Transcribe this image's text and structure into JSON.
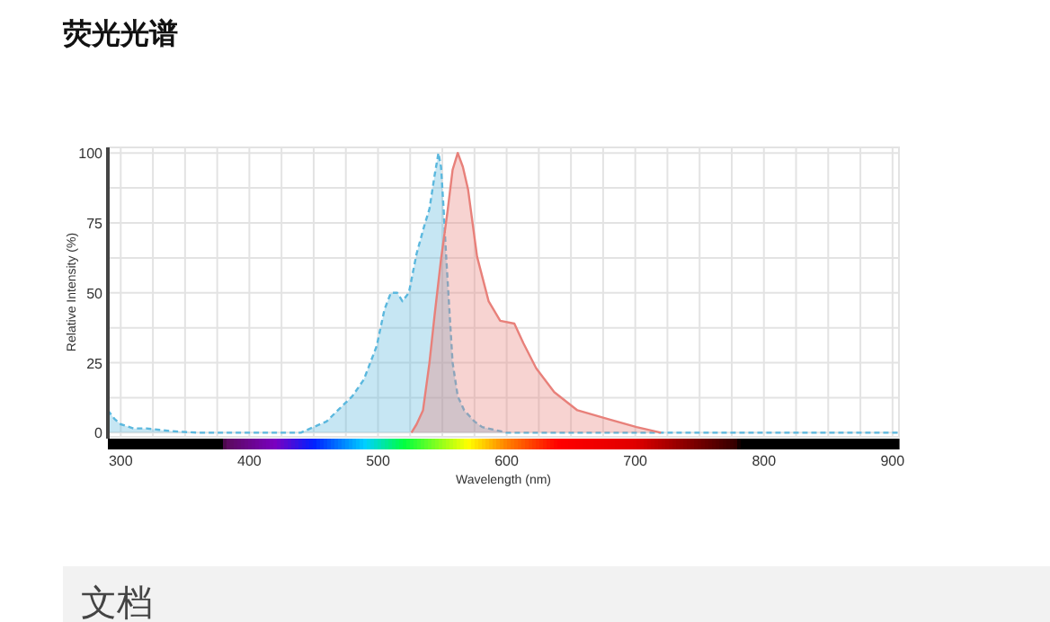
{
  "chart_data": {
    "type": "area",
    "title": "荧光光谱",
    "xlabel": "Wavelength (nm)",
    "ylabel": "Relative Intensity (%)",
    "annotations": [
      "文档"
    ],
    "xlim": [
      290,
      905
    ],
    "ylim": [
      -1.5,
      102
    ],
    "xticks": [
      {
        "value": 300,
        "label": "300"
      },
      {
        "value": 325,
        "label": null
      },
      {
        "value": 350,
        "label": null
      },
      {
        "value": 375,
        "label": null
      },
      {
        "value": 400,
        "label": "400"
      },
      {
        "value": 425,
        "label": null
      },
      {
        "value": 450,
        "label": null
      },
      {
        "value": 475,
        "label": null
      },
      {
        "value": 500,
        "label": "500"
      },
      {
        "value": 525,
        "label": null
      },
      {
        "value": 550,
        "label": null
      },
      {
        "value": 575,
        "label": null
      },
      {
        "value": 600,
        "label": "600"
      },
      {
        "value": 625,
        "label": null
      },
      {
        "value": 650,
        "label": null
      },
      {
        "value": 675,
        "label": null
      },
      {
        "value": 700,
        "label": "700"
      },
      {
        "value": 725,
        "label": null
      },
      {
        "value": 750,
        "label": null
      },
      {
        "value": 775,
        "label": null
      },
      {
        "value": 800,
        "label": "800"
      },
      {
        "value": 825,
        "label": null
      },
      {
        "value": 850,
        "label": null
      },
      {
        "value": 875,
        "label": null
      },
      {
        "value": 900,
        "label": "900"
      }
    ],
    "yticks": [
      0,
      {
        "value": 12.5,
        "label": null
      },
      25,
      {
        "value": 37.5,
        "label": null
      },
      50,
      {
        "value": 62.5,
        "label": null
      },
      75,
      {
        "value": 87.5,
        "label": null
      },
      100
    ],
    "grid": true,
    "series": [
      {
        "color": "#5bb8de",
        "line_style": "dashed",
        "x": [
          290,
          295,
          300,
          310,
          320,
          330,
          340,
          360,
          400,
          440,
          450,
          460,
          471,
          480,
          489,
          499,
          505,
          510,
          515,
          519,
          524,
          530,
          536,
          540,
          544,
          547,
          549,
          551,
          553,
          556,
          558,
          562,
          567,
          575,
          581,
          600,
          905
        ],
        "values": [
          8,
          5,
          3,
          1.5,
          1.5,
          1,
          0.5,
          0,
          0,
          0,
          2,
          4,
          9,
          13,
          19,
          31,
          44,
          50,
          50,
          47,
          50,
          64,
          74,
          80,
          92,
          100,
          95,
          80,
          63,
          40,
          25,
          13,
          8,
          4,
          2,
          0,
          0
        ]
      },
      {
        "color": "#e8807a",
        "line_style": "solid",
        "x": [
          526,
          530,
          535,
          540,
          544,
          549,
          554,
          558,
          562,
          566,
          570,
          577,
          586,
          595,
          606,
          613,
          623,
          637,
          655,
          678,
          701,
          720
        ],
        "values": [
          0,
          3,
          8,
          25,
          42,
          62,
          79,
          94,
          100,
          95,
          87,
          63,
          47,
          40,
          39,
          32,
          23,
          14.5,
          8,
          5,
          2,
          0
        ]
      }
    ]
  }
}
